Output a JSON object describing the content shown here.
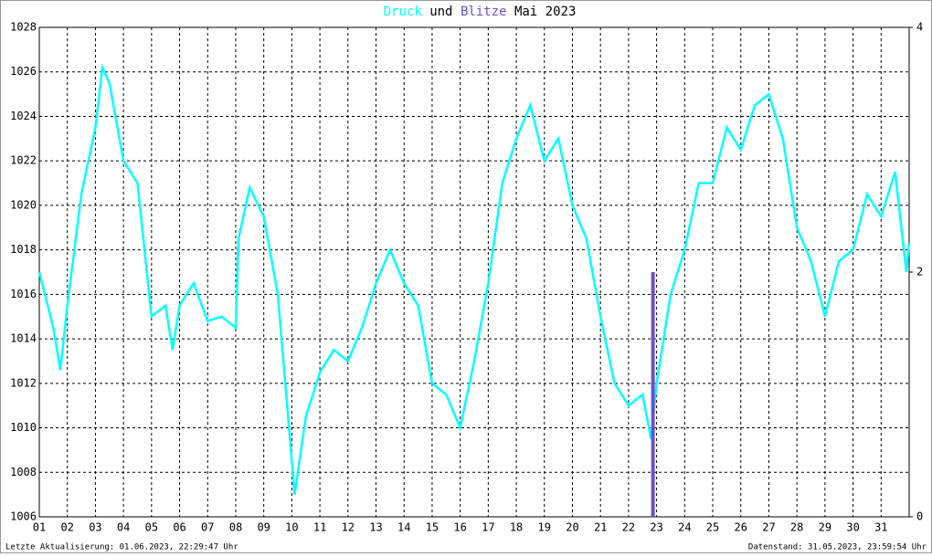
{
  "chart_data": {
    "type": "line",
    "title": [
      "Druck",
      "und",
      "Blitze",
      "Mai 2023"
    ],
    "footer_left": "Letzte Aktualisierung: 01.06.2023, 22:29:47 Uhr",
    "footer_right": "Datenstand: 31.05.2023, 23:59:54 Uhr",
    "xlim": [
      1,
      32
    ],
    "xticks": [
      {
        "value": 1,
        "label": "01"
      },
      {
        "value": 2,
        "label": "02"
      },
      {
        "value": 3,
        "label": "03"
      },
      {
        "value": 4,
        "label": "04"
      },
      {
        "value": 5,
        "label": "05"
      },
      {
        "value": 6,
        "label": "06"
      },
      {
        "value": 7,
        "label": "07"
      },
      {
        "value": 8,
        "label": "08"
      },
      {
        "value": 9,
        "label": "09"
      },
      {
        "value": 10,
        "label": "10"
      },
      {
        "value": 11,
        "label": "11"
      },
      {
        "value": 12,
        "label": "12"
      },
      {
        "value": 13,
        "label": "13"
      },
      {
        "value": 14,
        "label": "14"
      },
      {
        "value": 15,
        "label": "15"
      },
      {
        "value": 16,
        "label": "16"
      },
      {
        "value": 17,
        "label": "17"
      },
      {
        "value": 18,
        "label": "18"
      },
      {
        "value": 19,
        "label": "19"
      },
      {
        "value": 20,
        "label": "20"
      },
      {
        "value": 21,
        "label": "21"
      },
      {
        "value": 22,
        "label": "22"
      },
      {
        "value": 23,
        "label": "23"
      },
      {
        "value": 24,
        "label": "24"
      },
      {
        "value": 25,
        "label": "25"
      },
      {
        "value": 26,
        "label": "26"
      },
      {
        "value": 27,
        "label": "27"
      },
      {
        "value": 28,
        "label": "28"
      },
      {
        "value": 29,
        "label": "29"
      },
      {
        "value": 30,
        "label": "30"
      },
      {
        "value": 31,
        "label": "31"
      }
    ],
    "ylim": [
      1006,
      1028
    ],
    "yticks": [
      1006,
      1008,
      1010,
      1012,
      1014,
      1016,
      1018,
      1020,
      1022,
      1024,
      1026,
      1028
    ],
    "y2lim": [
      0,
      4
    ],
    "y2ticks": [
      0,
      2,
      4
    ],
    "grid": true,
    "series": [
      {
        "name": "Druck",
        "color": "#00ffff",
        "x": [
          1,
          1.5,
          1.75,
          2,
          2.5,
          3,
          3.25,
          3.5,
          4,
          4.5,
          5,
          5.5,
          5.75,
          6,
          6.5,
          7,
          7.5,
          8,
          8.1,
          8.5,
          9,
          9.5,
          10,
          10.1,
          10.5,
          11,
          11.5,
          12,
          12.5,
          13,
          13.5,
          14,
          14.5,
          15,
          15.5,
          16,
          16.5,
          17,
          17.5,
          18,
          18.5,
          19,
          19.5,
          20,
          20.5,
          21,
          21.5,
          22,
          22.5,
          22.8,
          23,
          23.5,
          24,
          24.5,
          25,
          25.5,
          26,
          26.5,
          27,
          27.5,
          28,
          28.5,
          29,
          29.5,
          30,
          30.5,
          31,
          31.5,
          31.9,
          32
        ],
        "values": [
          1017,
          1014.5,
          1012.6,
          1015.5,
          1020.5,
          1023.5,
          1026.2,
          1025.5,
          1022,
          1021,
          1015,
          1015.5,
          1013.5,
          1015.5,
          1016.5,
          1014.8,
          1015,
          1014.5,
          1018.5,
          1020.8,
          1019.5,
          1016,
          1008.5,
          1007,
          1010.5,
          1012.5,
          1013.5,
          1013,
          1014.5,
          1016.5,
          1018,
          1016.5,
          1015.5,
          1012,
          1011.5,
          1010,
          1013,
          1016.5,
          1021,
          1023,
          1024.5,
          1022,
          1023,
          1020,
          1018.5,
          1015,
          1012,
          1011,
          1011.5,
          1009.5,
          1012,
          1016,
          1018,
          1021,
          1021,
          1023.5,
          1022.5,
          1024.5,
          1025,
          1023,
          1019,
          1017.5,
          1015,
          1017.5,
          1018,
          1020.5,
          1019.5,
          1021.5,
          1017,
          1018.3
        ]
      },
      {
        "name": "Blitze",
        "color": "#6a4fd0",
        "axis": "y2",
        "kind": "bar",
        "x": [
          22.87
        ],
        "values": [
          2
        ]
      }
    ]
  }
}
